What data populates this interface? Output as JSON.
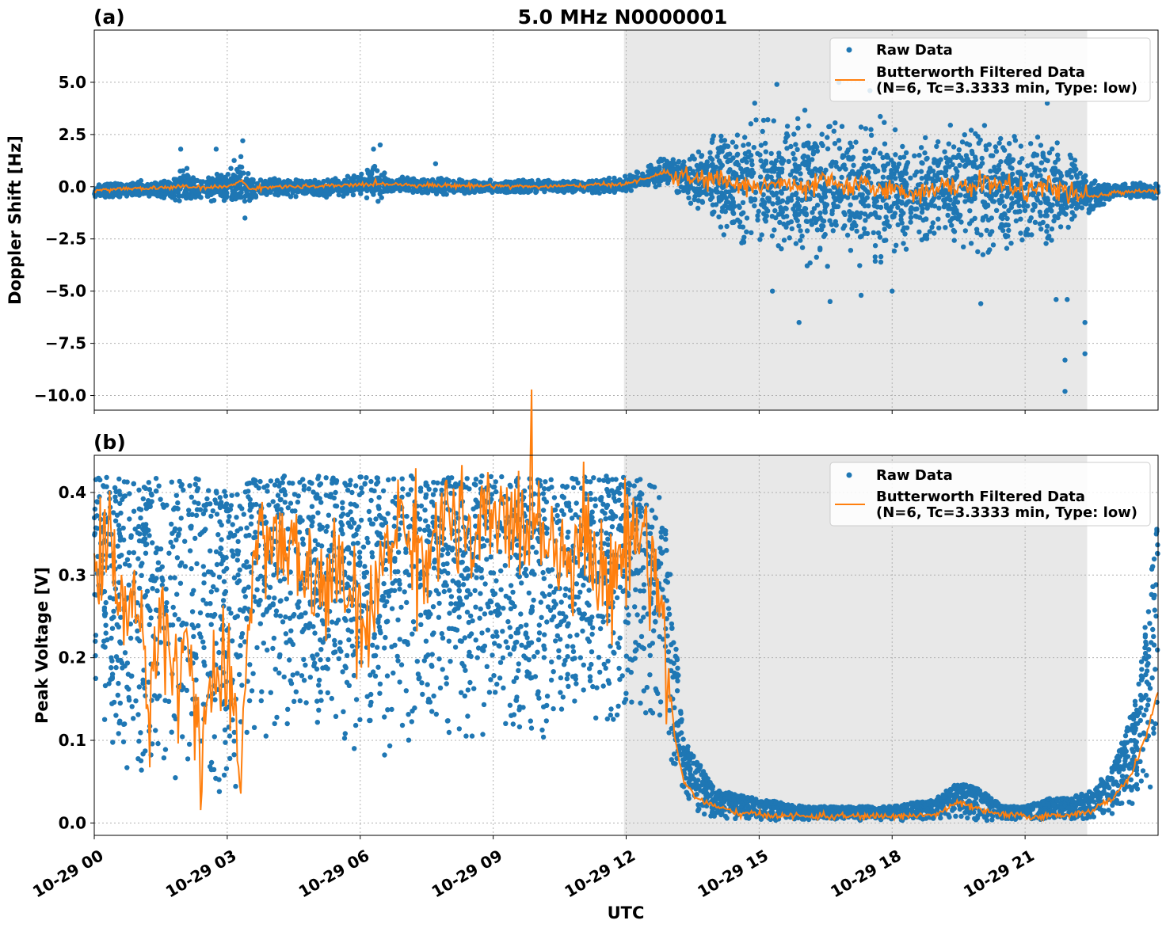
{
  "chart_data": [
    {
      "type": "scatter",
      "panel": "(a)",
      "title": "5.0 MHz N0000001",
      "ylabel": "Doppler Shift [Hz]",
      "xlabel": "",
      "xlim_hours": [
        0,
        24
      ],
      "ylim": [
        -10.7,
        7.5
      ],
      "yticks": [
        5.0,
        2.5,
        0.0,
        -2.5,
        -5.0,
        -7.5,
        -10.0
      ],
      "ytick_labels": [
        "5.0",
        "2.5",
        "0.0",
        "−2.5",
        "−5.0",
        "−7.5",
        "−10.0"
      ],
      "shaded_region_hours": [
        11.95,
        22.4
      ],
      "grid": true,
      "legend_position": "top-right",
      "legend": {
        "raw": "Raw Data",
        "filtered_line1": "Butterworth Filtered Data",
        "filtered_line2": "(N=6, Tc=3.3333 min, Type: low)"
      },
      "series": [
        {
          "name": "Raw Data",
          "color": "#1f77b4",
          "envelope": {
            "x_hours": [
              0,
              1,
              1.8,
              2.0,
              2.2,
              2.7,
              3.0,
              3.3,
              3.4,
              3.6,
              4,
              5,
              6,
              6.4,
              6.6,
              7,
              8,
              9,
              10,
              11,
              11.9,
              12.3,
              12.8,
              13.3,
              13.8,
              14.5,
              15,
              16,
              17,
              17.5,
              18,
              18.5,
              19,
              19.5,
              20,
              20.5,
              21,
              21.5,
              22,
              22.4,
              23,
              24
            ],
            "center": [
              -0.2,
              -0.1,
              -0.1,
              0.1,
              -0.1,
              -0.1,
              0.0,
              0.3,
              0.0,
              -0.1,
              0.0,
              -0.1,
              0.1,
              0.3,
              0.0,
              0.1,
              0.0,
              0.0,
              0.0,
              0.0,
              0.1,
              0.3,
              0.7,
              0.5,
              0.3,
              0.1,
              0.0,
              -0.1,
              0.0,
              0.0,
              -0.2,
              -0.4,
              -0.1,
              0.0,
              0.1,
              -0.1,
              -0.1,
              -0.2,
              -0.3,
              -0.4,
              -0.2,
              -0.2
            ],
            "halfwidth": [
              0.25,
              0.3,
              0.4,
              0.9,
              0.5,
              0.5,
              0.6,
              1.1,
              0.6,
              0.4,
              0.35,
              0.35,
              0.4,
              0.8,
              0.35,
              0.3,
              0.3,
              0.25,
              0.25,
              0.25,
              0.3,
              0.35,
              0.5,
              0.8,
              1.5,
              2.3,
              2.6,
              2.9,
              3.0,
              2.9,
              2.6,
              2.0,
              2.1,
              2.6,
              2.6,
              2.3,
              2.2,
              2.0,
              1.6,
              0.7,
              0.3,
              0.3
            ],
            "note": ""
          },
          "outliers": [
            {
              "x": 1.95,
              "y": 1.8
            },
            {
              "x": 2.75,
              "y": 1.8
            },
            {
              "x": 3.35,
              "y": 2.2
            },
            {
              "x": 3.4,
              "y": -1.5
            },
            {
              "x": 6.3,
              "y": 1.8
            },
            {
              "x": 6.45,
              "y": 2.0
            },
            {
              "x": 7.7,
              "y": 1.1
            },
            {
              "x": 14.9,
              "y": 4.0
            },
            {
              "x": 15.4,
              "y": 4.9
            },
            {
              "x": 16.8,
              "y": 5.0
            },
            {
              "x": 15.3,
              "y": -5.0
            },
            {
              "x": 15.9,
              "y": -6.5
            },
            {
              "x": 16.6,
              "y": -5.5
            },
            {
              "x": 17.3,
              "y": -5.2
            },
            {
              "x": 18.0,
              "y": -5.0
            },
            {
              "x": 20.0,
              "y": -5.6
            },
            {
              "x": 21.7,
              "y": -5.4
            },
            {
              "x": 21.95,
              "y": -5.4
            },
            {
              "x": 22.35,
              "y": -6.5
            },
            {
              "x": 22.35,
              "y": -8.0
            },
            {
              "x": 21.9,
              "y": -8.3
            },
            {
              "x": 21.9,
              "y": -9.8
            },
            {
              "x": 17.5,
              "y": 4.6
            },
            {
              "x": 21.5,
              "y": 4.0
            }
          ]
        },
        {
          "name": "Butterworth Filtered Data (N=6, Tc=3.3333 min, Type: low)",
          "color": "#ff7f0e",
          "x_hours": [
            0,
            0.5,
            1,
            1.5,
            2,
            2.5,
            3,
            3.3,
            3.5,
            4,
            5,
            6,
            6.5,
            7,
            8,
            9,
            10,
            11,
            12,
            12.5,
            12.8,
            13.2,
            13.6,
            14,
            14.5,
            15,
            15.5,
            16,
            16.5,
            17,
            17.5,
            18,
            18.5,
            19,
            19.5,
            20,
            20.5,
            21,
            21.5,
            22,
            22.5,
            23,
            23.5,
            24
          ],
          "y": [
            -0.2,
            -0.1,
            -0.1,
            -0.05,
            0.0,
            -0.05,
            0.0,
            0.3,
            -0.1,
            0.0,
            0.0,
            0.1,
            0.15,
            0.1,
            0.05,
            0.05,
            0.0,
            0.05,
            0.15,
            0.4,
            0.7,
            0.5,
            0.3,
            0.4,
            0.1,
            0.0,
            0.2,
            -0.2,
            0.3,
            -0.1,
            0.1,
            -0.2,
            -0.3,
            0.0,
            -0.1,
            0.2,
            0.1,
            -0.2,
            0.0,
            -0.3,
            -0.5,
            -0.3,
            -0.2,
            -0.2
          ]
        }
      ]
    },
    {
      "type": "scatter",
      "panel": "(b)",
      "title": "",
      "ylabel": "Peak Voltage [V]",
      "xlabel": "UTC",
      "xlim_hours": [
        0,
        24
      ],
      "ylim": [
        -0.015,
        0.445
      ],
      "yticks": [
        0.0,
        0.1,
        0.2,
        0.3,
        0.4
      ],
      "ytick_labels": [
        "0.0",
        "0.1",
        "0.2",
        "0.3",
        "0.4"
      ],
      "xticks_hours": [
        0,
        3,
        6,
        9,
        12,
        15,
        18,
        21
      ],
      "xtick_labels": [
        "10-29 00",
        "10-29 03",
        "10-29 06",
        "10-29 09",
        "10-29 12",
        "10-29 15",
        "10-29 18",
        "10-29 21"
      ],
      "shaded_region_hours": [
        11.95,
        22.4
      ],
      "grid": true,
      "legend_position": "top-right",
      "legend": {
        "raw": "Raw Data",
        "filtered_line1": "Butterworth Filtered Data",
        "filtered_line2": "(N=6, Tc=3.3333 min, Type: low)"
      },
      "series": [
        {
          "name": "Raw Data",
          "color": "#1f77b4",
          "envelope": {
            "x_hours": [
              0,
              0.5,
              1,
              1.5,
              2,
              2.5,
              3,
              3.3,
              3.5,
              4,
              5,
              6,
              6.5,
              7,
              8,
              9,
              10,
              11,
              12,
              12.5,
              12.8,
              13.0,
              13.3,
              13.6,
              14,
              15,
              16,
              17,
              18,
              19,
              19.5,
              20,
              20.5,
              21,
              21.5,
              22,
              22.5,
              23,
              23.5,
              24
            ],
            "upper": [
              0.42,
              0.42,
              0.42,
              0.42,
              0.42,
              0.42,
              0.4,
              0.4,
              0.42,
              0.42,
              0.42,
              0.42,
              0.42,
              0.42,
              0.42,
              0.42,
              0.42,
              0.42,
              0.42,
              0.42,
              0.4,
              0.3,
              0.1,
              0.08,
              0.04,
              0.03,
              0.02,
              0.02,
              0.02,
              0.03,
              0.05,
              0.04,
              0.02,
              0.02,
              0.03,
              0.03,
              0.04,
              0.07,
              0.15,
              0.37
            ],
            "lower": [
              0.15,
              0.05,
              0.03,
              0.03,
              0.04,
              0.02,
              0.03,
              0.03,
              0.08,
              0.1,
              0.1,
              0.08,
              0.07,
              0.1,
              0.1,
              0.1,
              0.08,
              0.1,
              0.1,
              0.12,
              0.1,
              0.05,
              0.03,
              0.01,
              0.005,
              0.003,
              0.003,
              0.003,
              0.003,
              0.003,
              0.005,
              0.003,
              0.003,
              0.003,
              0.003,
              0.003,
              0.005,
              0.01,
              0.02,
              0.04
            ]
          }
        },
        {
          "name": "Butterworth Filtered Data (N=6, Tc=3.3333 min, Type: low)",
          "color": "#ff7f0e",
          "x_hours": [
            0,
            0.3,
            0.6,
            0.9,
            1.2,
            1.5,
            1.8,
            2.1,
            2.4,
            2.7,
            3.0,
            3.3,
            3.5,
            3.8,
            4.2,
            4.6,
            5.0,
            5.4,
            5.8,
            6.2,
            6.6,
            7.0,
            7.5,
            8,
            8.5,
            9,
            9.5,
            10,
            10.5,
            11,
            11.5,
            12,
            12.3,
            12.6,
            12.9,
            13.1,
            13.3,
            13.6,
            14,
            14.5,
            15,
            16,
            17,
            18,
            19,
            19.5,
            20,
            20.5,
            21,
            21.5,
            22,
            22.5,
            23,
            23.4,
            23.7,
            24
          ],
          "y": [
            0.3,
            0.36,
            0.25,
            0.3,
            0.12,
            0.28,
            0.16,
            0.22,
            0.1,
            0.18,
            0.16,
            0.06,
            0.28,
            0.36,
            0.33,
            0.32,
            0.28,
            0.3,
            0.27,
            0.22,
            0.35,
            0.36,
            0.32,
            0.38,
            0.33,
            0.37,
            0.36,
            0.38,
            0.32,
            0.36,
            0.28,
            0.34,
            0.36,
            0.32,
            0.22,
            0.1,
            0.05,
            0.03,
            0.02,
            0.012,
            0.01,
            0.008,
            0.008,
            0.008,
            0.01,
            0.025,
            0.015,
            0.01,
            0.008,
            0.008,
            0.01,
            0.015,
            0.03,
            0.06,
            0.1,
            0.16
          ]
        }
      ]
    }
  ]
}
